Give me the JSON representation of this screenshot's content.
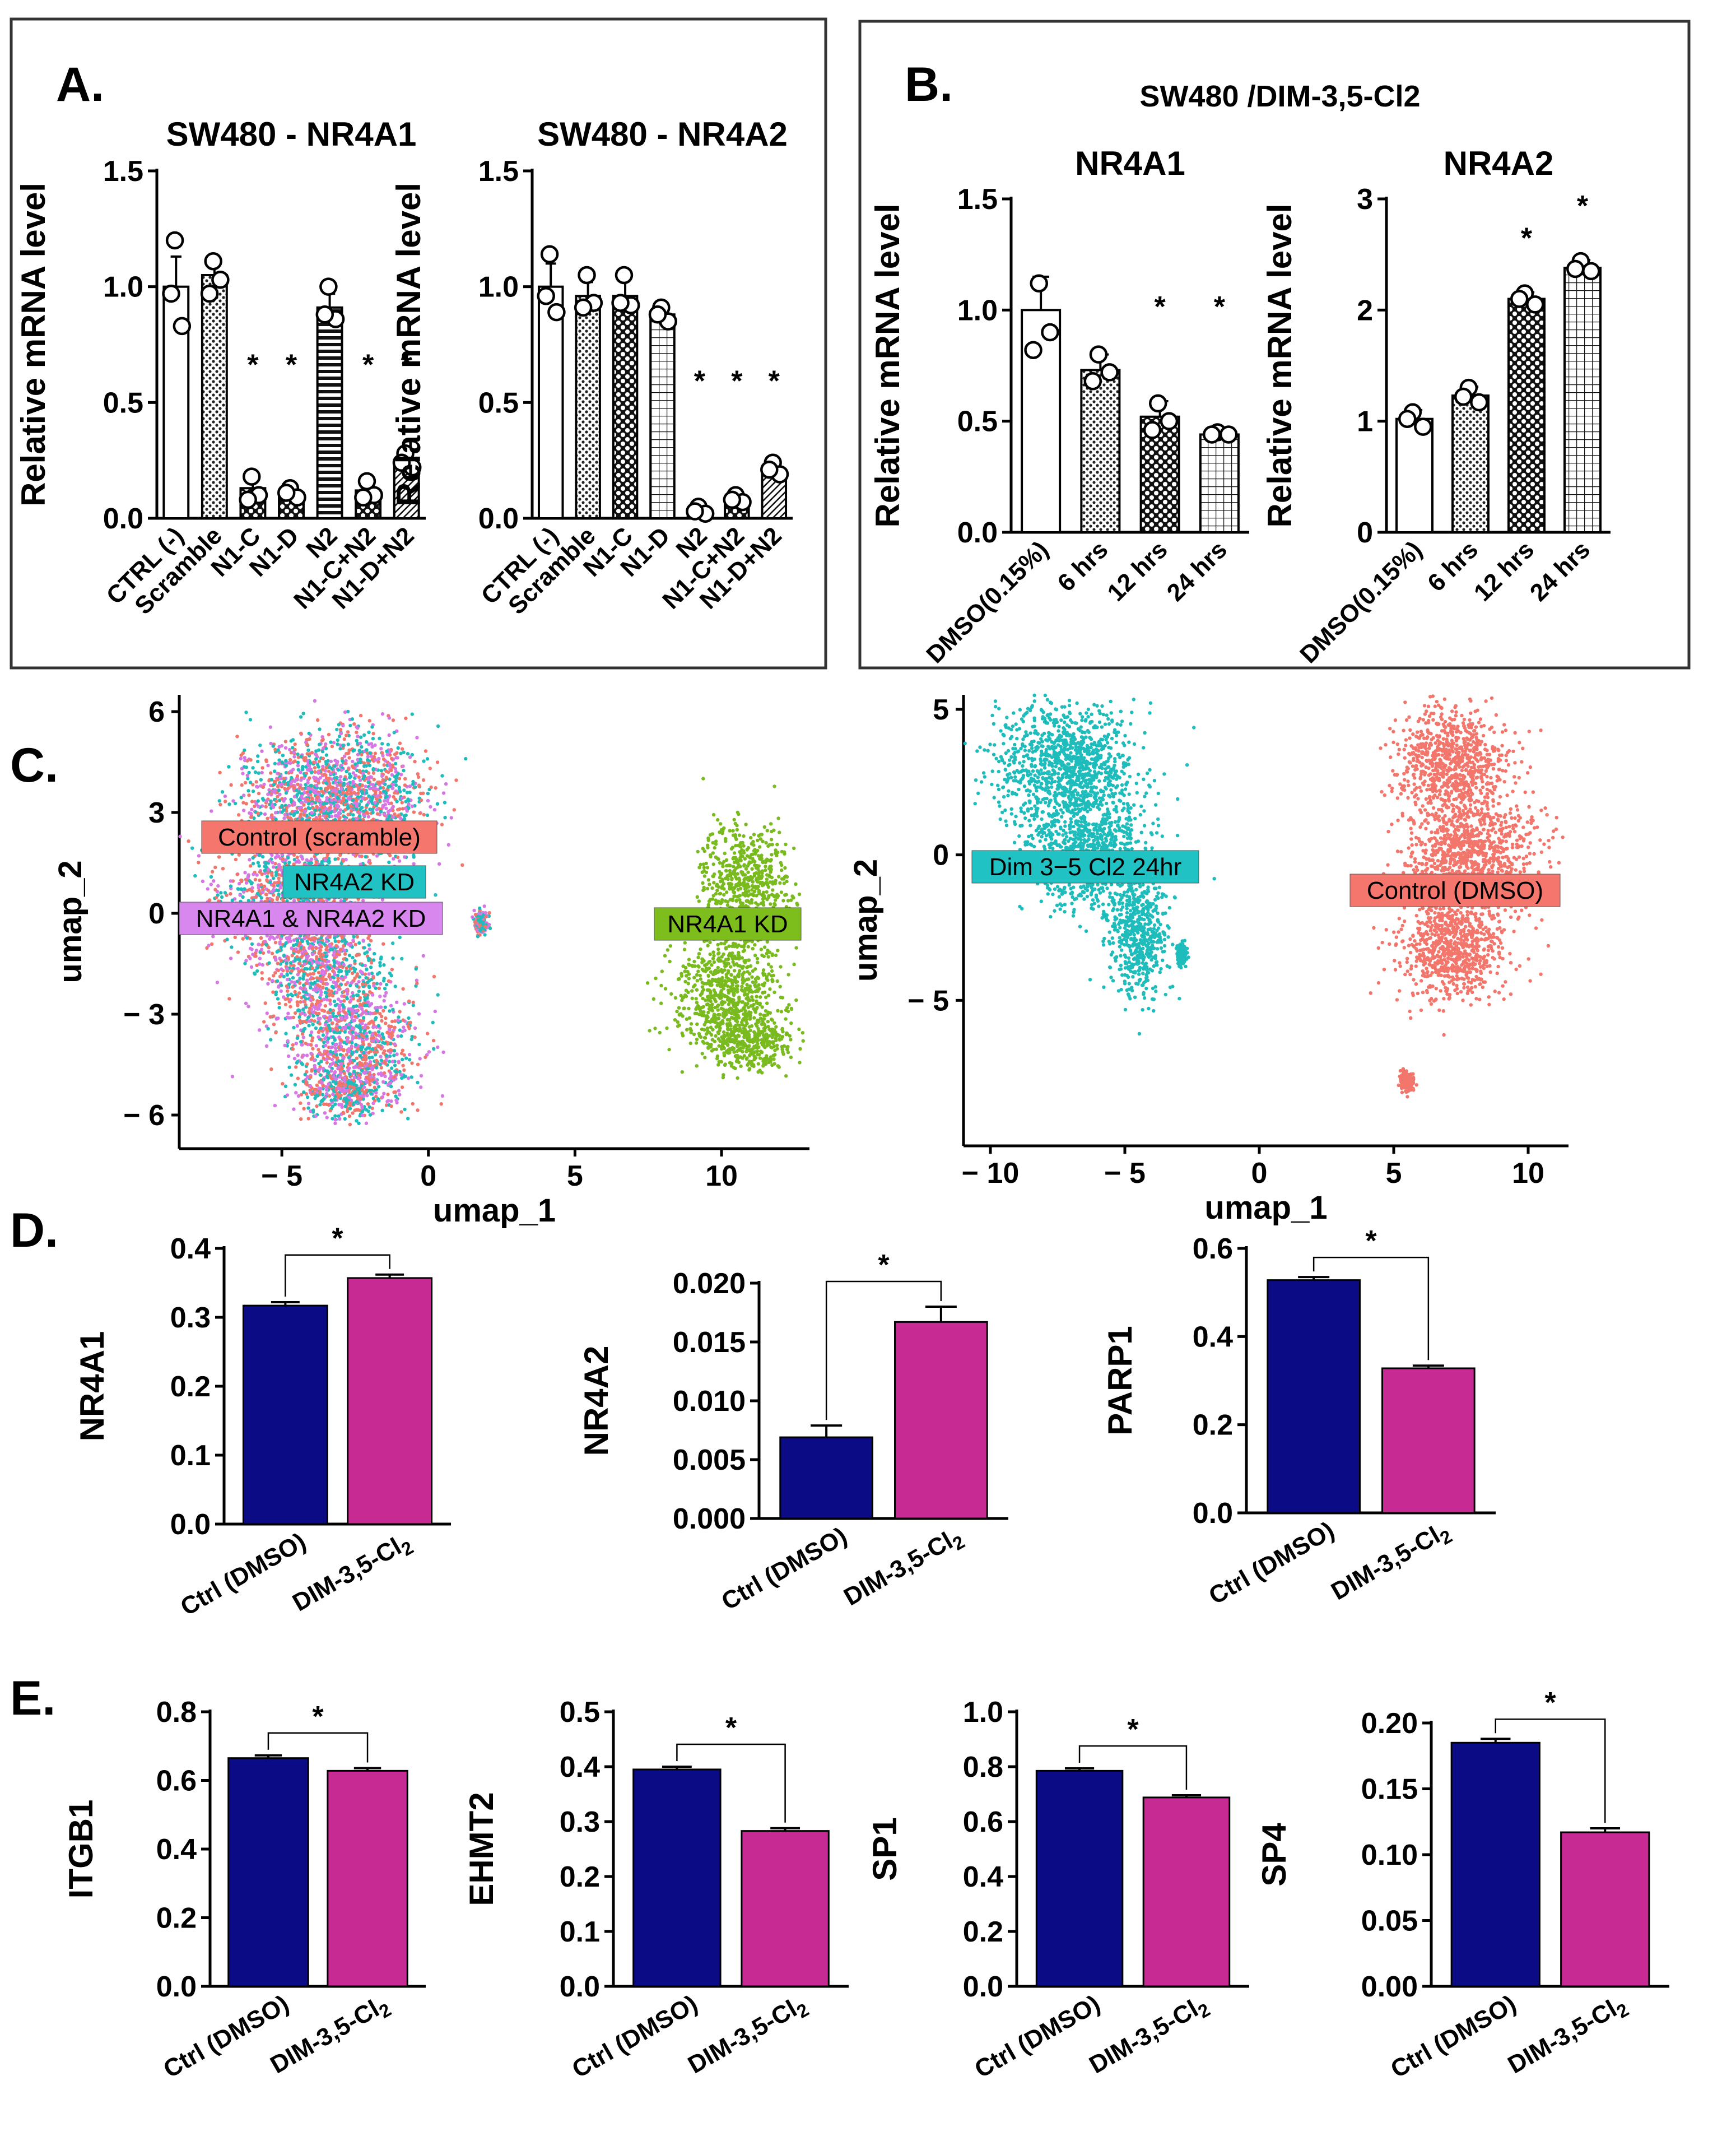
{
  "colors": {
    "navy": "#0b0b86",
    "magenta": "#c82a94",
    "teal": "#1fbcbc",
    "salmon": "#f2766c",
    "green": "#79ba1e",
    "violet": "#d777e6",
    "label_teal": "#20c2c4",
    "label_salmon": "#f4766c",
    "label_green": "#7dbe1d",
    "label_violet": "#d887ee"
  },
  "panels": {
    "A": "A.",
    "B": "B.",
    "C": "C.",
    "D": "D.",
    "E": "E."
  },
  "panelB_title": "SW480 /DIM-3,5-Cl2",
  "chart_data": [
    {
      "id": "A1",
      "type": "bar",
      "title": "SW480 - NR4A1",
      "ylabel": "Relative mRNA level",
      "ylim": [
        0,
        1.5
      ],
      "yticks": [
        "0.0",
        "0.5",
        "1.0",
        "1.5"
      ],
      "categories": [
        "CTRL (-)",
        "Scramble",
        "N1-C",
        "N1-D",
        "N2",
        "N1-C+N2",
        "N1-D+N2"
      ],
      "values": [
        1.0,
        1.05,
        0.13,
        0.11,
        0.91,
        0.12,
        0.24
      ],
      "errors": [
        0.13,
        0.06,
        0.05,
        0.03,
        0.06,
        0.04,
        0.04
      ],
      "points": [
        [
          1.2,
          0.83,
          0.97
        ],
        [
          1.11,
          1.03,
          0.97
        ],
        [
          0.18,
          0.1,
          0.08
        ],
        [
          0.13,
          0.09,
          0.11
        ],
        [
          1.0,
          0.86,
          0.88
        ],
        [
          0.16,
          0.1,
          0.09
        ],
        [
          0.28,
          0.22,
          0.24
        ]
      ],
      "patterns": [
        "white",
        "dots",
        "cross",
        "cross",
        "hlines",
        "cross",
        "diag"
      ],
      "significance": [
        "",
        "",
        "*",
        "*",
        "",
        "*",
        "*"
      ]
    },
    {
      "id": "A2",
      "type": "bar",
      "title": "SW480 - NR4A2",
      "ylabel": "Relative mRNA level",
      "ylim": [
        0,
        1.5
      ],
      "yticks": [
        "0.0",
        "0.5",
        "1.0",
        "1.5"
      ],
      "categories": [
        "CTRL (-)",
        "Scramble",
        "N1-C",
        "N1-D",
        "N2",
        "N1-C+N2",
        "N1-D+N2"
      ],
      "values": [
        1.0,
        0.96,
        0.96,
        0.88,
        0.03,
        0.08,
        0.21
      ],
      "errors": [
        0.1,
        0.06,
        0.08,
        0.04,
        0.02,
        0.03,
        0.03
      ],
      "points": [
        [
          1.14,
          0.89,
          0.96
        ],
        [
          1.05,
          0.93,
          0.91
        ],
        [
          1.05,
          0.92,
          0.93
        ],
        [
          0.91,
          0.85,
          0.88
        ],
        [
          0.05,
          0.02,
          0.03
        ],
        [
          0.1,
          0.07,
          0.08
        ],
        [
          0.24,
          0.19,
          0.21
        ]
      ],
      "patterns": [
        "white",
        "dots",
        "cross",
        "grid",
        "white",
        "cross",
        "diag"
      ],
      "significance": [
        "",
        "",
        "",
        "",
        "*",
        "*",
        "*"
      ]
    },
    {
      "id": "B1",
      "type": "bar",
      "title": "NR4A1",
      "ylabel": "Relative mRNA level",
      "ylim": [
        0,
        1.5
      ],
      "yticks": [
        "0.0",
        "0.5",
        "1.0",
        "1.5"
      ],
      "categories": [
        "DMSO(0.15%)",
        "6 hrs",
        "12 hrs",
        "24 hrs"
      ],
      "values": [
        1.0,
        0.73,
        0.52,
        0.44
      ],
      "errors": [
        0.15,
        0.07,
        0.07,
        0.01
      ],
      "points": [
        [
          1.12,
          0.9,
          0.82
        ],
        [
          0.8,
          0.72,
          0.68
        ],
        [
          0.58,
          0.5,
          0.46
        ],
        [
          0.45,
          0.44,
          0.44
        ]
      ],
      "patterns": [
        "white",
        "dots",
        "cross",
        "grid"
      ],
      "significance": [
        "",
        "",
        "*",
        "*"
      ]
    },
    {
      "id": "B2",
      "type": "bar",
      "title": "NR4A2",
      "ylabel": "Relative mRNA level",
      "ylim": [
        0,
        3
      ],
      "yticks": [
        "0",
        "1",
        "2",
        "3"
      ],
      "categories": [
        "DMSO(0.15%)",
        "6 hrs",
        "12 hrs",
        "24 hrs"
      ],
      "values": [
        1.02,
        1.23,
        2.1,
        2.38
      ],
      "errors": [
        0.08,
        0.08,
        0.06,
        0.07
      ],
      "points": [
        [
          1.08,
          0.95,
          1.02
        ],
        [
          1.3,
          1.17,
          1.22
        ],
        [
          2.15,
          2.05,
          2.1
        ],
        [
          2.44,
          2.35,
          2.37
        ]
      ],
      "patterns": [
        "white",
        "dots",
        "cross",
        "grid"
      ],
      "significance": [
        "",
        "",
        "*",
        "*"
      ]
    },
    {
      "id": "C1",
      "type": "scatter",
      "xlabel": "umap_1",
      "ylabel": "umap_2",
      "xlim": [
        -8.5,
        13
      ],
      "ylim": [
        -7,
        6.5
      ],
      "xticks": [
        -5,
        0,
        5,
        10
      ],
      "xticklabels": [
        "− 5",
        "0",
        "5",
        "10"
      ],
      "yticks": [
        6,
        3,
        0,
        -3,
        -6
      ],
      "yticklabels": [
        "6",
        "3",
        "0",
        "− 3",
        "− 6"
      ],
      "labels": [
        "Control (scramble)",
        "NR4A2 KD",
        "NR4A1 & NR4A2 KD",
        "NR4A1 KD"
      ],
      "clusters": [
        {
          "name": "mixed",
          "series": [
            "Control (scramble)",
            "NR4A2 KD",
            "NR4A1 & NR4A2 KD"
          ],
          "blobs": [
            [
              -4.3,
              3.5,
              2.6,
              2.0
            ],
            [
              -2.0,
              3.3,
              2.2,
              2.4
            ],
            [
              -4.8,
              0.5,
              2.8,
              2.0
            ],
            [
              -3.7,
              -1.6,
              2.2,
              2.2
            ],
            [
              -2.5,
              -3.8,
              2.4,
              2.0
            ],
            [
              -2.8,
              -5.2,
              1.8,
              1.0
            ],
            [
              1.8,
              -0.3,
              0.25,
              0.4
            ]
          ]
        },
        {
          "name": "NR4A1 KD",
          "series": [
            "NR4A1 KD"
          ],
          "blobs": [
            [
              10.8,
              0.8,
              1.6,
              2.0
            ],
            [
              10.2,
              -2.4,
              2.0,
              2.0
            ],
            [
              11.0,
              -3.8,
              1.6,
              0.9
            ]
          ]
        }
      ]
    },
    {
      "id": "C2",
      "type": "scatter",
      "xlabel": "umap_1",
      "ylabel": "umap_2",
      "xlim": [
        -11,
        11.5
      ],
      "ylim": [
        -10,
        5.5
      ],
      "xticks": [
        -10,
        -5,
        0,
        5,
        10
      ],
      "xticklabels": [
        "− 10",
        "− 5",
        "0",
        "5",
        "10"
      ],
      "yticks": [
        5,
        0,
        -5
      ],
      "yticklabels": [
        "5",
        "0",
        "− 5"
      ],
      "labels": [
        "Dim 3−5 Cl2 24hr",
        "Control (DMSO)"
      ],
      "clusters": [
        {
          "name": "Dim 3-5 Cl2 24hr",
          "series": [
            "Dim 3−5 Cl2 24hr"
          ],
          "blobs": [
            [
              -7.2,
              3.0,
              2.8,
              2.4
            ],
            [
              -6.3,
              0.0,
              2.4,
              2.0
            ],
            [
              -4.5,
              -2.8,
              1.2,
              2.2
            ],
            [
              -2.9,
              -3.4,
              0.2,
              0.4
            ]
          ]
        },
        {
          "name": "Control (DMSO)",
          "series": [
            "Control (DMSO)"
          ],
          "blobs": [
            [
              7.2,
              3.2,
              2.2,
              2.0
            ],
            [
              7.8,
              0.0,
              2.6,
              2.2
            ],
            [
              7.2,
              -3.2,
              2.2,
              2.0
            ],
            [
              5.5,
              -7.8,
              0.3,
              0.4
            ]
          ]
        }
      ]
    },
    {
      "id": "D1",
      "type": "bar",
      "ylabel": "NR4A1",
      "ylim": [
        0,
        0.4
      ],
      "yticks": [
        "0.0",
        "0.1",
        "0.2",
        "0.3",
        "0.4"
      ],
      "categories": [
        "Ctrl (DMSO)",
        "DIM-3,5-Cl2"
      ],
      "values": [
        0.317,
        0.357
      ],
      "errors": [
        0.005,
        0.005
      ],
      "significance": "*"
    },
    {
      "id": "D2",
      "type": "bar",
      "ylabel": "NR4A2",
      "ylim": [
        0,
        0.02
      ],
      "yticks": [
        "0.000",
        "0.005",
        "0.010",
        "0.015",
        "0.020"
      ],
      "categories": [
        "Ctrl (DMSO)",
        "DIM-3,5-Cl2"
      ],
      "values": [
        0.0069,
        0.0167
      ],
      "errors": [
        0.001,
        0.0013
      ],
      "significance": "*"
    },
    {
      "id": "D3",
      "type": "bar",
      "ylabel": "PARP1",
      "ylim": [
        0,
        0.6
      ],
      "yticks": [
        "0.0",
        "0.2",
        "0.4",
        "0.6"
      ],
      "categories": [
        "Ctrl (DMSO)",
        "DIM-3,5-Cl2"
      ],
      "values": [
        0.528,
        0.328
      ],
      "errors": [
        0.007,
        0.006
      ],
      "significance": "*"
    },
    {
      "id": "E1",
      "type": "bar",
      "ylabel": "ITGB1",
      "ylim": [
        0,
        0.8
      ],
      "yticks": [
        "0.0",
        "0.2",
        "0.4",
        "0.6",
        "0.8"
      ],
      "categories": [
        "Ctrl (DMSO)",
        "DIM-3,5-Cl2"
      ],
      "values": [
        0.665,
        0.628
      ],
      "errors": [
        0.008,
        0.008
      ],
      "significance": "*"
    },
    {
      "id": "E2",
      "type": "bar",
      "ylabel": "EHMT2",
      "ylim": [
        0,
        0.5
      ],
      "yticks": [
        "0.0",
        "0.1",
        "0.2",
        "0.3",
        "0.4",
        "0.5"
      ],
      "categories": [
        "Ctrl (DMSO)",
        "DIM-3,5-Cl2"
      ],
      "values": [
        0.395,
        0.283
      ],
      "errors": [
        0.005,
        0.005
      ],
      "significance": "*"
    },
    {
      "id": "E3",
      "type": "bar",
      "ylabel": "SP1",
      "ylim": [
        0,
        1.0
      ],
      "yticks": [
        "0.0",
        "0.2",
        "0.4",
        "0.6",
        "0.8",
        "1.0"
      ],
      "categories": [
        "Ctrl (DMSO)",
        "DIM-3,5-Cl2"
      ],
      "values": [
        0.785,
        0.688
      ],
      "errors": [
        0.009,
        0.008
      ],
      "significance": "*"
    },
    {
      "id": "E4",
      "type": "bar",
      "ylabel": "SP4",
      "ylim": [
        0,
        0.2
      ],
      "yticks": [
        "0.00",
        "0.05",
        "0.10",
        "0.15",
        "0.20"
      ],
      "categories": [
        "Ctrl (DMSO)",
        "DIM-3,5-Cl2"
      ],
      "values": [
        0.185,
        0.117
      ],
      "errors": [
        0.003,
        0.003
      ],
      "significance": "*"
    }
  ]
}
